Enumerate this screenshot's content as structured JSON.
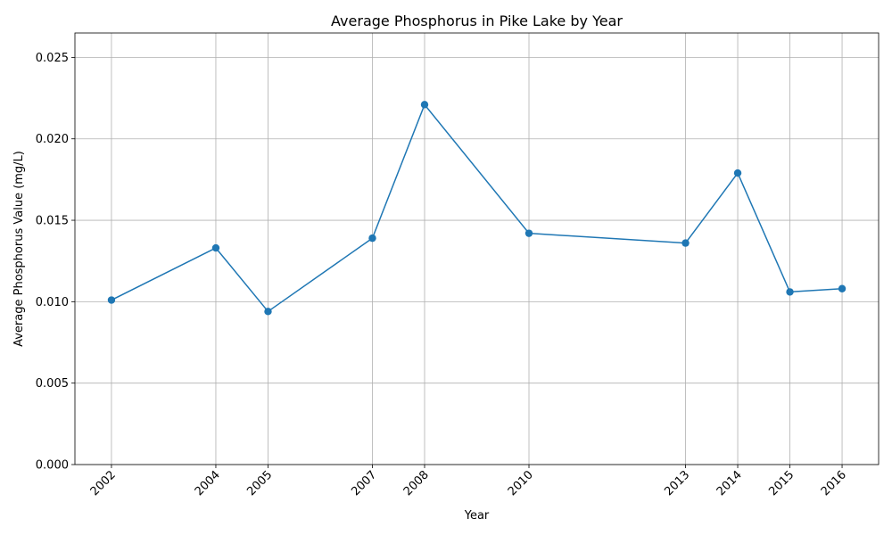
{
  "chart_data": {
    "type": "line",
    "title": "Average Phosphorus in Pike Lake by Year",
    "xlabel": "Year",
    "ylabel": "Average Phosphorus Value (mg/L)",
    "x": [
      2002,
      2004,
      2005,
      2007,
      2008,
      2010,
      2013,
      2014,
      2015,
      2016
    ],
    "x_tick_labels": [
      "2002",
      "2004",
      "2005",
      "2007",
      "2008",
      "2010",
      "2013",
      "2014",
      "2015",
      "2016"
    ],
    "series": [
      {
        "values": [
          0.0101,
          0.0133,
          0.0094,
          0.0139,
          0.0221,
          0.0142,
          0.0136,
          0.0179,
          0.0106,
          0.0108
        ]
      }
    ],
    "xlim": [
      2001.3,
      2016.7
    ],
    "ylim": [
      0,
      0.0265
    ],
    "y_ticks": [
      0.0,
      0.005,
      0.01,
      0.015,
      0.02,
      0.025
    ],
    "y_tick_labels": [
      "0.000",
      "0.005",
      "0.010",
      "0.015",
      "0.020",
      "0.025"
    ],
    "grid": true,
    "color": "#1f77b4",
    "marker": "circle"
  }
}
